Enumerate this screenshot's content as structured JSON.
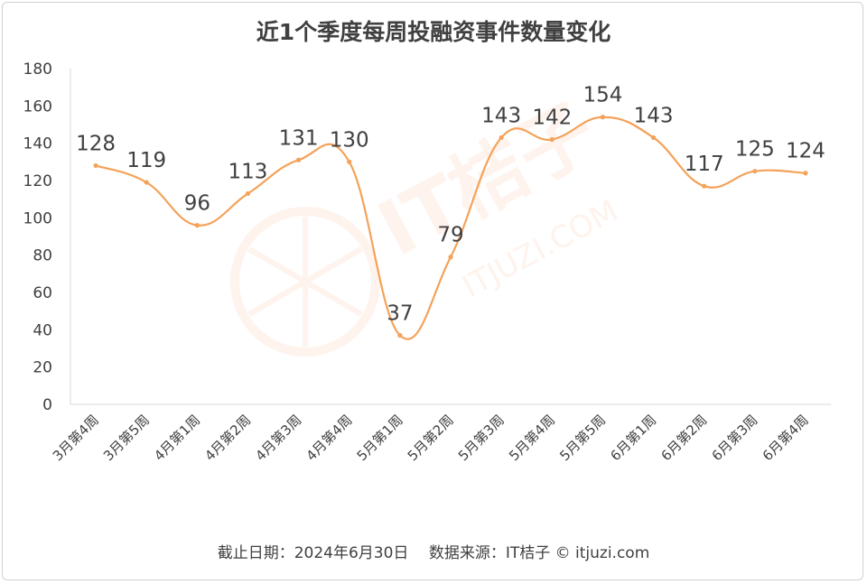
{
  "chart_data": {
    "type": "line",
    "title": "近1个季度每周投融资事件数量变化",
    "categories": [
      "3月第4周",
      "3月第5周",
      "4月第1周",
      "4月第2周",
      "4月第3周",
      "4月第4周",
      "5月第1周",
      "5月第2周",
      "5月第3周",
      "5月第4周",
      "5月第5周",
      "6月第1周",
      "6月第2周",
      "6月第3周",
      "6月第4周"
    ],
    "series": [
      {
        "values": [
          128,
          119,
          96,
          113,
          131,
          130,
          37,
          79,
          143,
          142,
          154,
          143,
          117,
          125,
          124
        ]
      }
    ],
    "ylim": [
      0,
      180
    ],
    "yticks": [
      0,
      20,
      40,
      60,
      80,
      100,
      120,
      140,
      160,
      180
    ],
    "grid": false,
    "smooth": true,
    "line_color": "#F4A259",
    "data_labels": true
  },
  "footer": "截止日期：2024年6月30日　 数据来源：IT桔子 © itjuzi.com",
  "watermark": {
    "brand": "IT桔子",
    "url": "ITJUZI.COM"
  }
}
